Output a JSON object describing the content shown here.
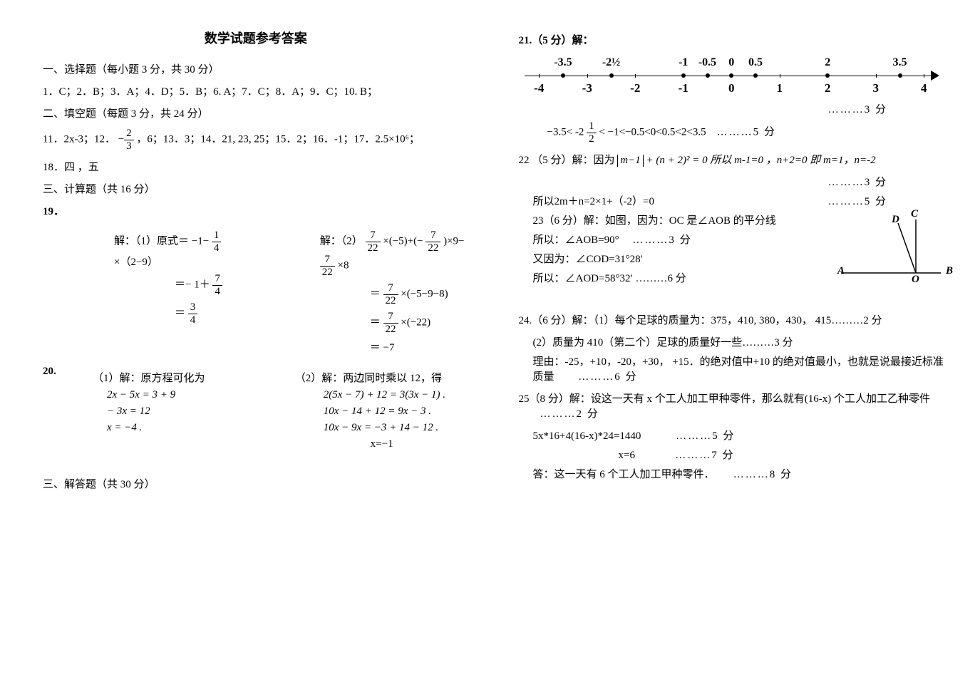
{
  "title": "数学试题参考答案",
  "section1_header": "一、选择题（每小题 3 分，共 30 分）",
  "answers_1_10": "1．C；2．B；3．A；4．D；5．B；6. A；7．C；8．A；9．C；10. B；",
  "section2_header": "二、填空题（每题 3 分，共 24 分）",
  "fill_11_17_pre": "11．2x-3；12．",
  "fill_11_17_post": "，6；13．3；14．21, 23, 25；15．2；16．-1；17．2.5×10⁶；",
  "fill_18": "18．四 ，五",
  "section3_header": "三、计算题（共 16 分）",
  "q19_label": "19．",
  "q19_1_head": "解：（1）原式＝ −1−",
  "q19_1_head_post": "×（2−9）",
  "q19_1_l2_a": "＝− 1＋",
  "q19_1_l3_a": "＝",
  "q19_2_head": "解：（2）",
  "q19_2_head_a": "×(−5)+(−",
  "q19_2_head_b": ")×9−",
  "q19_2_head_c": "×8",
  "q19_2_l2": "＝",
  "q19_2_l2_b": "×(−5−9−8)",
  "q19_2_l3": "＝",
  "q19_2_l3_b": "×(−22)",
  "q19_2_l4": "＝ −7",
  "q20_label": "20.",
  "q20_1_head": "（1）解：原方程可化为",
  "q20_1_l1": "2x − 5x = 3 + 9",
  "q20_1_l2": "− 3x = 12",
  "q20_1_l3": "x = −4 .",
  "q20_2_head": "（2）解：两边同时乘以 12，得",
  "q20_2_l1": "2(5x − 7) + 12 = 3(3x − 1) .",
  "q20_2_l2": "10x − 14 + 12 = 9x − 3 .",
  "q20_2_l3": "10x − 9x = −3 + 14 − 12 .",
  "q20_2_l4": "x=−1",
  "section_ans_header": "三、解答题（共 30 分）",
  "q21_head": "21.（5 分）解：",
  "numberline": {
    "min": -4,
    "max": 4,
    "major_ticks": [
      -4,
      -3,
      -2,
      -1,
      0,
      1,
      2,
      3,
      4
    ],
    "dots": [
      {
        "x": -3.5,
        "label": "-3.5"
      },
      {
        "x": -2.5,
        "label": "-2½"
      },
      {
        "x": -1,
        "label": "-1"
      },
      {
        "x": -0.5,
        "label": "-0.5"
      },
      {
        "x": 0,
        "label": "0"
      },
      {
        "x": 0.5,
        "label": "0.5"
      },
      {
        "x": 2,
        "label": "2"
      },
      {
        "x": 3.5,
        "label": "3.5"
      }
    ]
  },
  "q21_score3": "………3 分",
  "q21_ineq_a": "−3.5< -2",
  "q21_ineq_b": "< −1<−0.5<0<0.5<2<3.5",
  "q21_score5": "………5 分",
  "q22_pre": "22 （5 分）解：因为",
  "q22_abs": "m−1",
  "q22_mid": "+ (n + 2)² = 0 所以 m-1=0 ，n+2=0 即 m=1，n=-2",
  "q22_score3": "………3 分",
  "q22_l2": "所以2m＋n=2×1+（-2）=0",
  "q22_score5": "………5 分",
  "q23_l1": "23（6 分）解：如图，因为：OC 是∠AOB 的平分线",
  "q23_l2": "所以：∠AOB=90°",
  "q23_score3": "………3 分",
  "q23_l3": "又因为：∠COD=31°28′",
  "q23_l4": "所以：∠AOD=58°32′ ………6 分",
  "diagram_labels": {
    "A": "A",
    "B": "B",
    "C": "C",
    "D": "D",
    "O": "O"
  },
  "q24_l1": "24.（6 分）解：（1）每个足球的质量为：375，410, 380，430， 415………2 分",
  "q24_l2": "(2）质量为 410（第二个）足球的质量好一些………3 分",
  "q24_l3": "理由：-25，+10，-20，+30， +15．的绝对值中+10 的绝对值最小，也就是说最接近标准质量",
  "q24_score6": "………6 分",
  "q25_l1": "25（8 分）解：设这一天有 x 个工人加工甲种零件，那么就有(16-x) 个工人加工乙种零件",
  "q25_score2": "………2 分",
  "q25_l2": "5x*16+4(16-x)*24=1440",
  "q25_score5": "………5 分",
  "q25_l3": "x=6",
  "q25_score7": "………7 分",
  "q25_l4": "答：这一天有 6 个工人加工甲种零件．",
  "q25_score8": "………8 分"
}
